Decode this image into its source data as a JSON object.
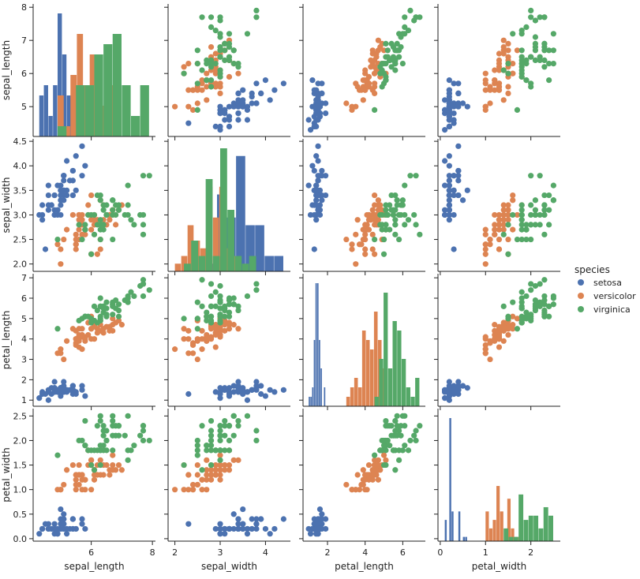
{
  "chart_data": {
    "type": "scatter",
    "variables": [
      "sepal_length",
      "sepal_width",
      "petal_length",
      "petal_width"
    ],
    "ranges": {
      "sepal_length": [
        4.1,
        8.1
      ],
      "sepal_width": [
        1.85,
        4.55
      ],
      "petal_length": [
        0.7,
        7.2
      ],
      "petal_width": [
        -0.05,
        2.65
      ]
    },
    "ticks": {
      "sepal_length": [
        5,
        6,
        7,
        8
      ],
      "sepal_width": [
        2.0,
        2.5,
        3.0,
        3.5,
        4.0,
        4.5
      ],
      "petal_length": [
        1,
        2,
        3,
        4,
        5,
        6,
        7
      ],
      "petal_width": [
        0.0,
        0.5,
        1.0,
        1.5,
        2.0,
        2.5
      ]
    },
    "x_ticks": {
      "sepal_length": [
        6,
        8
      ],
      "sepal_width": [
        2,
        3,
        4
      ],
      "petal_length": [
        2,
        4,
        6
      ],
      "petal_width": [
        0,
        1,
        2
      ]
    },
    "diagonal": "histogram",
    "off_diagonal": "scatter",
    "legend": {
      "title": "species",
      "placement": "right",
      "entries": [
        {
          "name": "setosa",
          "color": "#4c72b0"
        },
        {
          "name": "versicolor",
          "color": "#dd8452"
        },
        {
          "name": "virginica",
          "color": "#55a868"
        }
      ]
    },
    "series": [
      {
        "name": "setosa",
        "color": "#4c72b0",
        "data": [
          [
            5.1,
            3.5,
            1.4,
            0.2
          ],
          [
            4.9,
            3.0,
            1.4,
            0.2
          ],
          [
            4.7,
            3.2,
            1.3,
            0.2
          ],
          [
            4.6,
            3.1,
            1.5,
            0.2
          ],
          [
            5.0,
            3.6,
            1.4,
            0.2
          ],
          [
            5.4,
            3.9,
            1.7,
            0.4
          ],
          [
            4.6,
            3.4,
            1.4,
            0.3
          ],
          [
            5.0,
            3.4,
            1.5,
            0.2
          ],
          [
            4.4,
            2.9,
            1.4,
            0.2
          ],
          [
            4.9,
            3.1,
            1.5,
            0.1
          ],
          [
            5.4,
            3.7,
            1.5,
            0.2
          ],
          [
            4.8,
            3.4,
            1.6,
            0.2
          ],
          [
            4.8,
            3.0,
            1.4,
            0.1
          ],
          [
            4.3,
            3.0,
            1.1,
            0.1
          ],
          [
            5.8,
            4.0,
            1.2,
            0.2
          ],
          [
            5.7,
            4.4,
            1.5,
            0.4
          ],
          [
            5.4,
            3.9,
            1.3,
            0.4
          ],
          [
            5.1,
            3.5,
            1.4,
            0.3
          ],
          [
            5.7,
            3.8,
            1.7,
            0.3
          ],
          [
            5.1,
            3.8,
            1.5,
            0.3
          ],
          [
            5.4,
            3.4,
            1.7,
            0.2
          ],
          [
            5.1,
            3.7,
            1.5,
            0.4
          ],
          [
            4.6,
            3.6,
            1.0,
            0.2
          ],
          [
            5.1,
            3.3,
            1.7,
            0.5
          ],
          [
            4.8,
            3.4,
            1.9,
            0.2
          ],
          [
            5.0,
            3.0,
            1.6,
            0.2
          ],
          [
            5.0,
            3.4,
            1.6,
            0.4
          ],
          [
            5.2,
            3.5,
            1.5,
            0.2
          ],
          [
            5.2,
            3.4,
            1.4,
            0.2
          ],
          [
            4.7,
            3.2,
            1.6,
            0.2
          ],
          [
            4.8,
            3.1,
            1.6,
            0.2
          ],
          [
            5.4,
            3.4,
            1.5,
            0.4
          ],
          [
            5.2,
            4.1,
            1.5,
            0.1
          ],
          [
            5.5,
            4.2,
            1.4,
            0.2
          ],
          [
            4.9,
            3.1,
            1.5,
            0.2
          ],
          [
            5.0,
            3.2,
            1.2,
            0.2
          ],
          [
            5.5,
            3.5,
            1.3,
            0.2
          ],
          [
            4.9,
            3.6,
            1.4,
            0.1
          ],
          [
            4.4,
            3.0,
            1.3,
            0.2
          ],
          [
            5.1,
            3.4,
            1.5,
            0.2
          ],
          [
            5.0,
            3.5,
            1.3,
            0.3
          ],
          [
            4.5,
            2.3,
            1.3,
            0.3
          ],
          [
            4.4,
            3.2,
            1.3,
            0.2
          ],
          [
            5.0,
            3.5,
            1.6,
            0.6
          ],
          [
            5.1,
            3.8,
            1.9,
            0.4
          ],
          [
            4.8,
            3.0,
            1.4,
            0.3
          ],
          [
            5.1,
            3.8,
            1.6,
            0.2
          ],
          [
            4.6,
            3.2,
            1.4,
            0.2
          ],
          [
            5.3,
            3.7,
            1.5,
            0.2
          ],
          [
            5.0,
            3.3,
            1.4,
            0.2
          ]
        ]
      },
      {
        "name": "versicolor",
        "color": "#dd8452",
        "data": [
          [
            7.0,
            3.2,
            4.7,
            1.4
          ],
          [
            6.4,
            3.2,
            4.5,
            1.5
          ],
          [
            6.9,
            3.1,
            4.9,
            1.5
          ],
          [
            5.5,
            2.3,
            4.0,
            1.3
          ],
          [
            6.5,
            2.8,
            4.6,
            1.5
          ],
          [
            5.7,
            2.8,
            4.5,
            1.3
          ],
          [
            6.3,
            3.3,
            4.7,
            1.6
          ],
          [
            4.9,
            2.4,
            3.3,
            1.0
          ],
          [
            6.6,
            2.9,
            4.6,
            1.3
          ],
          [
            5.2,
            2.7,
            3.9,
            1.4
          ],
          [
            5.0,
            2.0,
            3.5,
            1.0
          ],
          [
            5.9,
            3.0,
            4.2,
            1.5
          ],
          [
            6.0,
            2.2,
            4.0,
            1.0
          ],
          [
            6.1,
            2.9,
            4.7,
            1.4
          ],
          [
            5.6,
            2.9,
            3.6,
            1.3
          ],
          [
            6.7,
            3.1,
            4.4,
            1.4
          ],
          [
            5.6,
            3.0,
            4.5,
            1.5
          ],
          [
            5.8,
            2.7,
            4.1,
            1.0
          ],
          [
            6.2,
            2.2,
            4.5,
            1.5
          ],
          [
            5.6,
            2.5,
            3.9,
            1.1
          ],
          [
            5.9,
            3.2,
            4.8,
            1.8
          ],
          [
            6.1,
            2.8,
            4.0,
            1.3
          ],
          [
            6.3,
            2.5,
            4.9,
            1.5
          ],
          [
            6.1,
            2.8,
            4.7,
            1.2
          ],
          [
            6.4,
            2.9,
            4.3,
            1.3
          ],
          [
            6.6,
            3.0,
            4.4,
            1.4
          ],
          [
            6.8,
            2.8,
            4.8,
            1.4
          ],
          [
            6.7,
            3.0,
            5.0,
            1.7
          ],
          [
            6.0,
            2.9,
            4.5,
            1.5
          ],
          [
            5.7,
            2.6,
            3.5,
            1.0
          ],
          [
            5.5,
            2.4,
            3.8,
            1.1
          ],
          [
            5.5,
            2.4,
            3.7,
            1.0
          ],
          [
            5.8,
            2.7,
            3.9,
            1.2
          ],
          [
            6.0,
            2.7,
            5.1,
            1.6
          ],
          [
            5.4,
            3.0,
            4.5,
            1.5
          ],
          [
            6.0,
            3.4,
            4.5,
            1.6
          ],
          [
            6.7,
            3.1,
            4.7,
            1.5
          ],
          [
            6.3,
            2.3,
            4.4,
            1.3
          ],
          [
            5.6,
            3.0,
            4.1,
            1.3
          ],
          [
            5.5,
            2.5,
            4.0,
            1.3
          ],
          [
            5.5,
            2.6,
            4.4,
            1.2
          ],
          [
            6.1,
            3.0,
            4.6,
            1.4
          ],
          [
            5.8,
            2.6,
            4.0,
            1.2
          ],
          [
            5.0,
            2.3,
            3.3,
            1.0
          ],
          [
            5.6,
            2.7,
            4.2,
            1.3
          ],
          [
            5.7,
            3.0,
            4.2,
            1.2
          ],
          [
            5.7,
            2.9,
            4.2,
            1.3
          ],
          [
            6.2,
            2.9,
            4.3,
            1.3
          ],
          [
            5.1,
            2.5,
            3.0,
            1.1
          ],
          [
            5.7,
            2.8,
            4.1,
            1.3
          ]
        ]
      },
      {
        "name": "virginica",
        "color": "#55a868",
        "data": [
          [
            6.3,
            3.3,
            6.0,
            2.5
          ],
          [
            5.8,
            2.7,
            5.1,
            1.9
          ],
          [
            7.1,
            3.0,
            5.9,
            2.1
          ],
          [
            6.3,
            2.9,
            5.6,
            1.8
          ],
          [
            6.5,
            3.0,
            5.8,
            2.2
          ],
          [
            7.6,
            3.0,
            6.6,
            2.1
          ],
          [
            4.9,
            2.5,
            4.5,
            1.7
          ],
          [
            7.3,
            2.9,
            6.3,
            1.8
          ],
          [
            6.7,
            2.5,
            5.8,
            1.8
          ],
          [
            7.2,
            3.6,
            6.1,
            2.5
          ],
          [
            6.5,
            3.2,
            5.1,
            2.0
          ],
          [
            6.4,
            2.7,
            5.3,
            1.9
          ],
          [
            6.8,
            3.0,
            5.5,
            2.1
          ],
          [
            5.7,
            2.5,
            5.0,
            2.0
          ],
          [
            5.8,
            2.8,
            5.1,
            2.4
          ],
          [
            6.4,
            3.2,
            5.3,
            2.3
          ],
          [
            6.5,
            3.0,
            5.5,
            1.8
          ],
          [
            7.7,
            3.8,
            6.7,
            2.2
          ],
          [
            7.7,
            2.6,
            6.9,
            2.3
          ],
          [
            6.0,
            2.2,
            5.0,
            1.5
          ],
          [
            6.9,
            3.2,
            5.7,
            2.3
          ],
          [
            5.6,
            2.8,
            4.9,
            2.0
          ],
          [
            7.7,
            2.8,
            6.7,
            2.0
          ],
          [
            6.3,
            2.7,
            4.9,
            1.8
          ],
          [
            6.7,
            3.3,
            5.7,
            2.1
          ],
          [
            7.2,
            3.2,
            6.0,
            1.8
          ],
          [
            6.2,
            2.8,
            4.8,
            1.8
          ],
          [
            6.1,
            3.0,
            4.9,
            1.8
          ],
          [
            6.4,
            2.8,
            5.6,
            2.1
          ],
          [
            7.2,
            3.0,
            5.8,
            1.6
          ],
          [
            7.4,
            2.8,
            6.1,
            1.9
          ],
          [
            7.9,
            3.8,
            6.4,
            2.0
          ],
          [
            6.4,
            2.8,
            5.6,
            2.2
          ],
          [
            6.3,
            2.8,
            5.1,
            1.5
          ],
          [
            6.1,
            2.6,
            5.6,
            1.4
          ],
          [
            7.7,
            3.0,
            6.1,
            2.3
          ],
          [
            6.3,
            3.4,
            5.6,
            2.4
          ],
          [
            6.4,
            3.1,
            5.5,
            1.8
          ],
          [
            6.0,
            3.0,
            4.8,
            1.8
          ],
          [
            6.9,
            3.1,
            5.4,
            2.1
          ],
          [
            6.7,
            3.1,
            5.6,
            2.4
          ],
          [
            6.9,
            3.1,
            5.1,
            2.3
          ],
          [
            5.8,
            2.7,
            5.1,
            1.9
          ],
          [
            6.8,
            3.2,
            5.9,
            2.3
          ],
          [
            6.7,
            3.3,
            5.7,
            2.5
          ],
          [
            6.7,
            3.0,
            5.2,
            2.3
          ],
          [
            6.3,
            2.5,
            5.0,
            1.9
          ],
          [
            6.5,
            3.0,
            5.2,
            2.0
          ],
          [
            6.2,
            3.4,
            5.4,
            2.3
          ],
          [
            5.9,
            3.0,
            5.1,
            1.8
          ]
        ]
      }
    ]
  }
}
